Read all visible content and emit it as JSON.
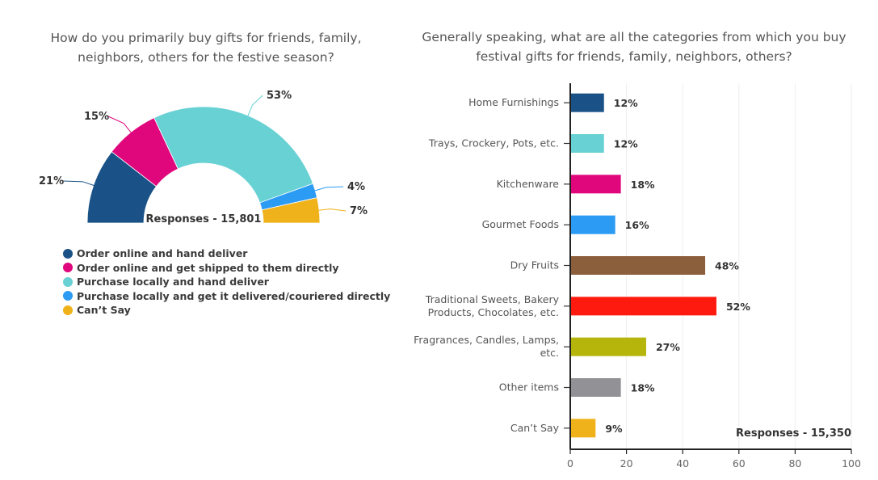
{
  "chart_data": [
    {
      "type": "pie",
      "variant": "semi-donut",
      "title": "How do you primarily buy gifts for friends, family, neighbors, others for the festive season?",
      "center_label": "Responses - 15,801",
      "slices": [
        {
          "label": "Order online and hand deliver",
          "value": 21,
          "display": "21%",
          "color": "#1a5287"
        },
        {
          "label": "Order online and get shipped to them directly",
          "value": 15,
          "display": "15%",
          "color": "#e0077d"
        },
        {
          "label": "Purchase locally and hand deliver",
          "value": 53,
          "display": "53%",
          "color": "#68d1d4"
        },
        {
          "label": "Purchase locally and get it delivered/couriered directly",
          "value": 4,
          "display": "4%",
          "color": "#2b9bf4"
        },
        {
          "label": "Can’t Say",
          "value": 7,
          "display": "7%",
          "color": "#f0b21a"
        }
      ],
      "legend_position": "bottom-left"
    },
    {
      "type": "bar",
      "orientation": "horizontal",
      "title": "Generally speaking, what are all the categories from which you buy festival gifts for friends, family, neighbors, others?",
      "annotation": "Responses - 15,350",
      "categories": [
        [
          "Home Furnishings"
        ],
        [
          "Trays, Crockery, Pots, etc."
        ],
        [
          "Kitchenware"
        ],
        [
          "Gourmet Foods"
        ],
        [
          "Dry Fruits"
        ],
        [
          "Traditional Sweets, Bakery",
          "Products, Chocolates, etc."
        ],
        [
          "Fragrances, Candles, Lamps,",
          "etc."
        ],
        [
          "Other items"
        ],
        [
          "Can’t Say"
        ]
      ],
      "values": [
        12,
        12,
        18,
        16,
        48,
        52,
        27,
        18,
        9
      ],
      "value_labels": [
        "12%",
        "12%",
        "18%",
        "16%",
        "48%",
        "52%",
        "27%",
        "18%",
        "9%"
      ],
      "colors": [
        "#1a5287",
        "#68d1d4",
        "#e0077d",
        "#2b9bf4",
        "#8b5e3c",
        "#ff1a0f",
        "#b5b50c",
        "#929296",
        "#f0b21a"
      ],
      "xlim": [
        0,
        100
      ],
      "xticks": [
        0,
        20,
        40,
        60,
        80,
        100
      ],
      "xlabel": "",
      "ylabel": "",
      "grid": true
    }
  ]
}
